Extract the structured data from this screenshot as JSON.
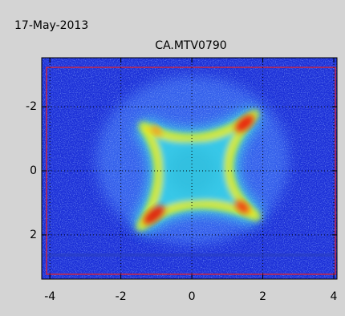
{
  "chart_data": {
    "type": "image",
    "date": "17-May-2013",
    "title": "CA.MTV0790",
    "xlim": [
      -4.23,
      4.09
    ],
    "xticks": [
      -4,
      -2,
      0,
      2,
      4
    ],
    "ylim": [
      3.38,
      -3.53
    ],
    "yticks": [
      -2,
      0,
      2
    ],
    "grid": true
  }
}
